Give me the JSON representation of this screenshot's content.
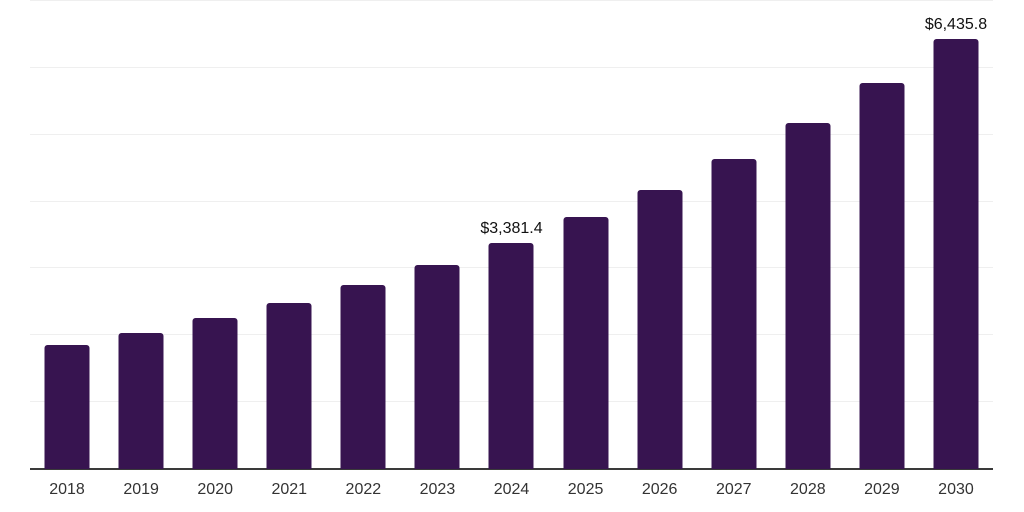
{
  "chart_data": {
    "type": "bar",
    "title": "",
    "xlabel": "",
    "ylabel": "",
    "categories": [
      "2018",
      "2019",
      "2020",
      "2021",
      "2022",
      "2023",
      "2024",
      "2025",
      "2026",
      "2027",
      "2028",
      "2029",
      "2030"
    ],
    "values": [
      1860,
      2040,
      2260,
      2490,
      2750,
      3050,
      3381.4,
      3770,
      4170,
      4640,
      5180,
      5780,
      6435.8
    ],
    "value_labels": [
      null,
      null,
      null,
      null,
      null,
      null,
      "$3,381.4",
      null,
      null,
      null,
      null,
      null,
      "$6,435.8"
    ],
    "ylim": [
      0,
      7000
    ],
    "gridline_step": 1000,
    "grid": "horizontal",
    "legend_position": "none",
    "colors": {
      "bar": "#371450",
      "axis_line": "#3A3A3A",
      "gridline": "#EFEFEF",
      "x_label": "#333333",
      "value_label": "#111111",
      "background": "#FFFFFF"
    }
  }
}
